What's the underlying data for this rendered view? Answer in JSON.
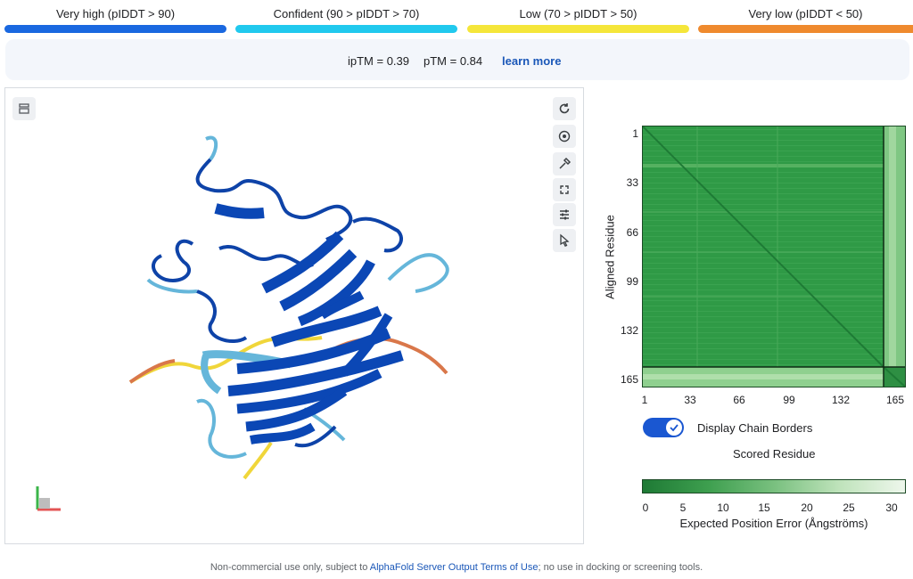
{
  "legend": [
    {
      "label": "Very high (pIDDT > 90)",
      "color": "#1a68e0"
    },
    {
      "label": "Confident (90 > pIDDT > 70)",
      "color": "#21c9ee"
    },
    {
      "label": "Low (70 > pIDDT > 50)",
      "color": "#f5e63a"
    },
    {
      "label": "Very low (pIDDT < 50)",
      "color": "#ef8a2e"
    }
  ],
  "metrics": {
    "iptm": "ipTM = 0.39",
    "ptm": "pTM = 0.84",
    "learn_more": "learn more"
  },
  "viewer": {
    "tools": [
      "rotate-icon",
      "center-icon",
      "color-picker-icon",
      "fullscreen-icon",
      "settings-sliders-icon",
      "pointer-icon"
    ],
    "top_left_tool": "layers-icon"
  },
  "pae": {
    "y_ticks": [
      "1",
      "33",
      "66",
      "99",
      "132",
      "165"
    ],
    "x_ticks": [
      "1",
      "33",
      "66",
      "99",
      "132",
      "165"
    ],
    "y_label": "Aligned Residue",
    "x_label": "Scored Residue",
    "toggle_label": "Display Chain Borders",
    "toggle_on": true,
    "colorbar_ticks": [
      "0",
      "5",
      "10",
      "15",
      "20",
      "25",
      "30"
    ],
    "colorbar_title": "Expected Position Error (Ångströms)"
  },
  "footer": {
    "prefix": "Non-commercial use only, subject to ",
    "link": "AlphaFold Server Output Terms of Use",
    "suffix": "; no use in docking or screening tools."
  }
}
